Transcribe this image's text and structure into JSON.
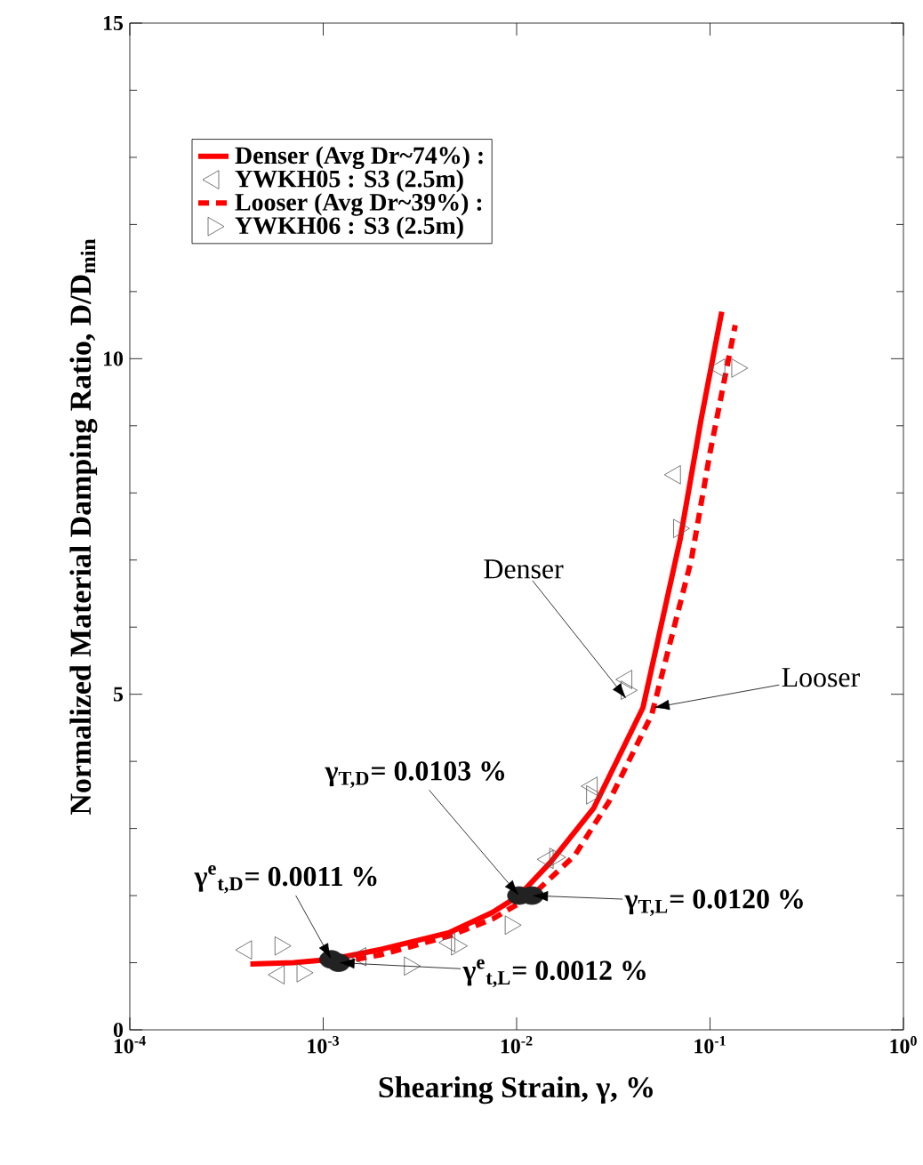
{
  "chart_data": {
    "type": "line",
    "xlabel": "Shearing Strain, γ, %",
    "ylabel": "Normalized Material Damping Ratio, D/D$_{min}$",
    "log": "x",
    "xlim": [
      0.0001,
      1
    ],
    "ylim": [
      0,
      15
    ],
    "xticks": [
      {
        "value": 0.0001,
        "label": "10$^{-4}$"
      },
      {
        "value": 0.001,
        "label": "10$^{-3}$"
      },
      {
        "value": 0.01,
        "label": "10$^{-2}$"
      },
      {
        "value": 0.1,
        "label": "10$^{-1}$"
      },
      {
        "value": 1,
        "label": "10$^{0}$"
      }
    ],
    "yticks": [
      0,
      5,
      10,
      15
    ],
    "legend": "top left",
    "series": [
      {
        "name": "Denser (Avg Dr~74%) :",
        "color": "#ff0000",
        "line_style": "solid",
        "marker": "none",
        "x": [
          0.00042,
          0.0007,
          0.0011,
          0.002,
          0.0045,
          0.0075,
          0.0103,
          0.015,
          0.025,
          0.045,
          0.07,
          0.09,
          0.115
        ],
        "values": [
          0.98,
          1.0,
          1.05,
          1.2,
          1.45,
          1.75,
          2.0,
          2.5,
          3.3,
          4.8,
          7.3,
          9.1,
          10.7
        ]
      },
      {
        "name": "YWKH05 : S3 (2.5m)",
        "type": "scatter",
        "color": "#555555",
        "marker": "triangle",
        "x": [
          0.0004,
          0.00059,
          0.00156,
          0.0045,
          0.0145,
          0.0245,
          0.037,
          0.066,
          0.112
        ],
        "values": [
          1.19,
          0.82,
          1.09,
          1.3,
          2.54,
          3.63,
          5.22,
          8.27,
          9.86
        ]
      },
      {
        "name": "Looser (Avg Dr~39%) :",
        "color": "#ff0000",
        "line_style": "dashed",
        "marker": "none",
        "x": [
          0.0012,
          0.002,
          0.0045,
          0.0075,
          0.012,
          0.02,
          0.03,
          0.05,
          0.08,
          0.1,
          0.135
        ],
        "values": [
          1.0,
          1.12,
          1.4,
          1.65,
          2.0,
          2.6,
          3.4,
          4.7,
          7.0,
          8.6,
          10.5
        ]
      },
      {
        "name": "YWKH06 : S3 (2.5m)",
        "type": "scatter",
        "color": "#555555",
        "marker": "triangle",
        "x": [
          0.0006,
          0.00078,
          0.0028,
          0.0049,
          0.0093,
          0.0158,
          0.0245,
          0.037,
          0.069,
          0.138
        ],
        "values": [
          1.25,
          0.85,
          0.95,
          1.25,
          1.56,
          2.57,
          3.5,
          5.06,
          7.47,
          9.86
        ]
      },
      {
        "type": "scatter",
        "color": "#222222",
        "marker": "circle",
        "x": [
          0.0011,
          0.0012,
          0.0103,
          0.012
        ],
        "values": [
          1.05,
          1.0,
          2.0,
          2.0
        ]
      }
    ],
    "annotations": [
      {
        "text": "Denser",
        "x": 0.037,
        "y": 4.93
      },
      {
        "text": "Looser",
        "x": 0.051,
        "y": 4.8
      },
      {
        "text": "γ$_{T,D}$= 0.0103 %",
        "x": 0.0103,
        "y": 2.0
      },
      {
        "text": "γ$^{e}$$_{t,D}$= 0.0011 %",
        "x": 0.0011,
        "y": 1.05
      },
      {
        "text": "γ$_{T,L}$= 0.0120 %",
        "x": 0.012,
        "y": 2.0
      },
      {
        "text": "γ$^{e}$$_{t,L}$= 0.0012 %",
        "x": 0.0012,
        "y": 1.0
      }
    ]
  }
}
